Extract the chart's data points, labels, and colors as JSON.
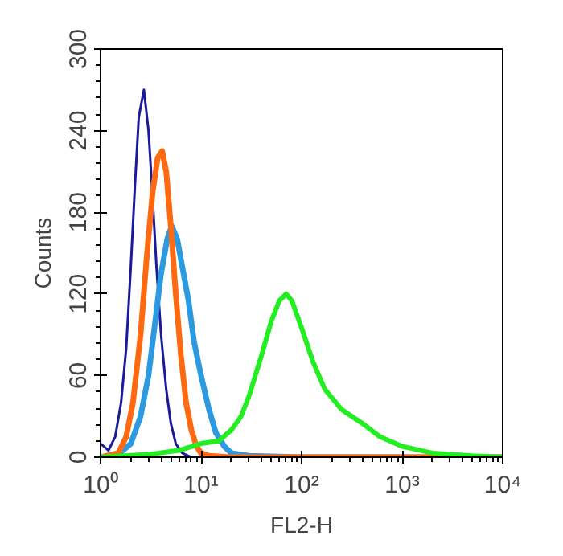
{
  "chart_data": {
    "type": "line",
    "xlabel": "FL2-H",
    "ylabel": "Counts",
    "log": "x",
    "grid": false,
    "marker": "none",
    "line_style": "solid",
    "xlim": [
      1,
      10000
    ],
    "ylim": [
      0,
      300
    ],
    "xticks": [
      {
        "value": 1,
        "label": "10⁰"
      },
      {
        "value": 10,
        "label": "10¹"
      },
      {
        "value": 100,
        "label": "10²"
      },
      {
        "value": 1000,
        "label": "10³"
      },
      {
        "value": 10000,
        "label": "10⁴"
      }
    ],
    "yticks": [
      0,
      60,
      120,
      180,
      240,
      300
    ],
    "series": [
      {
        "color": "#1a1a9c",
        "x": [
          1.0,
          1.2,
          1.4,
          1.6,
          1.8,
          2.0,
          2.2,
          2.4,
          2.7,
          3.0,
          3.3,
          3.6,
          4.0,
          4.5,
          5.0,
          5.6,
          6.5,
          8,
          10
        ],
        "values": [
          10,
          5,
          15,
          40,
          80,
          140,
          200,
          250,
          270,
          240,
          190,
          140,
          90,
          50,
          25,
          10,
          3,
          0,
          0
        ]
      },
      {
        "color": "#2b9ae0",
        "x": [
          1.5,
          2,
          2.5,
          3,
          3.5,
          4,
          4.6,
          5.1,
          5.8,
          6.5,
          7.5,
          8.5,
          10,
          12,
          14,
          17,
          20,
          30,
          100,
          10000
        ],
        "values": [
          2,
          10,
          30,
          60,
          100,
          135,
          160,
          170,
          160,
          140,
          115,
          85,
          60,
          35,
          18,
          8,
          3,
          1,
          0,
          0
        ]
      },
      {
        "color": "#ff6a10",
        "x": [
          1.0,
          1.5,
          1.8,
          2.1,
          2.5,
          2.9,
          3.3,
          3.7,
          4.1,
          4.5,
          5.0,
          5.6,
          6.3,
          7.1,
          8,
          9,
          10,
          12,
          20,
          10000
        ],
        "values": [
          0,
          3,
          15,
          40,
          90,
          150,
          195,
          220,
          225,
          210,
          170,
          120,
          75,
          40,
          20,
          8,
          3,
          1,
          0,
          0
        ]
      },
      {
        "color": "#22ee22",
        "x": [
          1,
          3,
          6,
          10,
          15,
          20,
          25,
          30,
          40,
          50,
          60,
          70,
          80,
          100,
          130,
          170,
          250,
          400,
          600,
          1000,
          2000,
          5000,
          10000
        ],
        "values": [
          0,
          2,
          5,
          10,
          12,
          20,
          30,
          45,
          75,
          100,
          115,
          120,
          115,
          95,
          70,
          50,
          35,
          25,
          15,
          8,
          3,
          1,
          0
        ]
      }
    ]
  }
}
